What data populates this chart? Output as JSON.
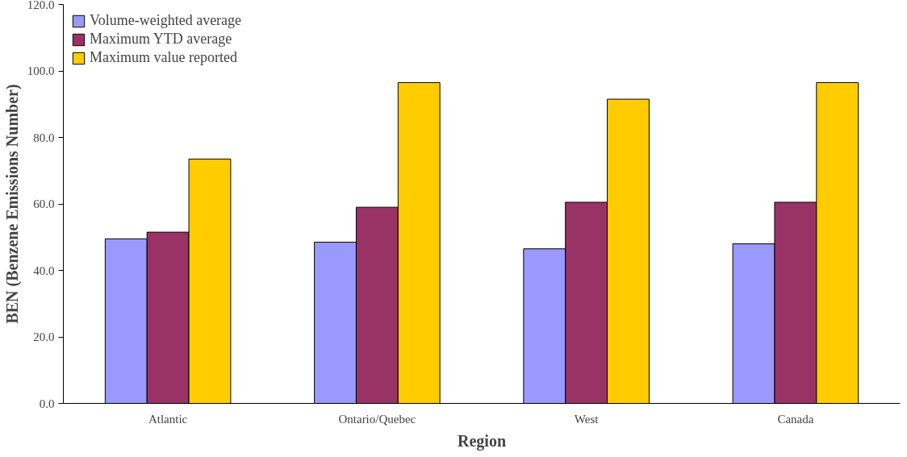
{
  "chart_data": {
    "type": "bar",
    "xlabel": "Region",
    "ylabel": "BEN (Benzene Emissions Number)",
    "categories": [
      "Atlantic",
      "Ontario/Quebec",
      "West",
      "Canada"
    ],
    "series": [
      {
        "name": "Volume-weighted average",
        "color": "#9999ff",
        "values": [
          49.5,
          48.5,
          46.5,
          48.0
        ]
      },
      {
        "name": "Maximum YTD average",
        "color": "#993366",
        "values": [
          51.5,
          59.0,
          60.5,
          60.5
        ]
      },
      {
        "name": "Maximum value reported",
        "color": "#ffcc00",
        "values": [
          73.5,
          96.5,
          91.5,
          96.5
        ]
      }
    ],
    "ylim": [
      0,
      120
    ],
    "yticks": [
      {
        "value": 0,
        "label": "0.0"
      },
      {
        "value": 20,
        "label": "20.0"
      },
      {
        "value": 40,
        "label": "40.0"
      },
      {
        "value": 60,
        "label": "60.0"
      },
      {
        "value": 80,
        "label": "80.0"
      },
      {
        "value": 100,
        "label": "100.0"
      },
      {
        "value": 120,
        "label": "120.0"
      }
    ],
    "grid": false,
    "legend": "top left"
  }
}
